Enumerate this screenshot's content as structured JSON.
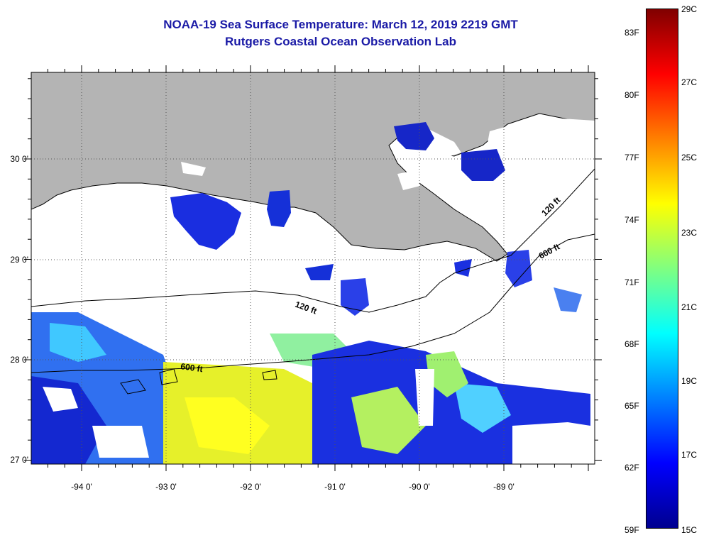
{
  "title": "NOAA-19 Sea Surface Temperature:  March 12, 2019 2219 GMT",
  "subtitle": "Rutgers Coastal Ocean Observation Lab",
  "map": {
    "lon_labels": [
      "-94 0'",
      "-93 0'",
      "-92 0'",
      "-91 0'",
      "-90 0'",
      "-89 0'"
    ],
    "lat_labels": [
      "30 0'",
      "29 0'",
      "28 0'",
      "27 0'"
    ],
    "contour_labels": [
      "120 ft",
      "600 ft",
      "120 ft",
      "600 ft"
    ],
    "land_color": "#b4b4b4",
    "coast_color": "#000000"
  },
  "colorbar": {
    "fahrenheit": [
      "83F",
      "80F",
      "77F",
      "74F",
      "71F",
      "68F",
      "65F",
      "62F",
      "59F"
    ],
    "celsius": [
      "29C",
      "27C",
      "25C",
      "23C",
      "21C",
      "19C",
      "17C",
      "15C"
    ],
    "colors": [
      "#00008f",
      "#0000ff",
      "#0080ff",
      "#00ffff",
      "#80ff80",
      "#ffff00",
      "#ff8000",
      "#ff0000",
      "#800000"
    ]
  }
}
